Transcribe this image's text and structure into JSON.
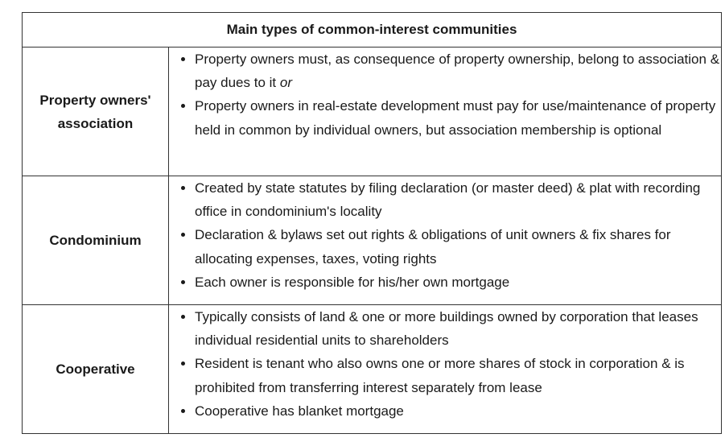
{
  "table": {
    "title": "Main types of common-interest communities",
    "rows": [
      {
        "label": "Property owners' association",
        "items": [
          {
            "text": "Property owners must, as consequence of property ownership, belong to association & pay dues to it",
            "suffix": "or"
          },
          {
            "text": "Property owners in real-estate development must pay for use/maintenance of property held in common by individual owners, but association membership is optional"
          }
        ]
      },
      {
        "label": "Condominium",
        "items": [
          {
            "text": "Created by state statutes by filing declaration (or master deed) & plat with recording office in condominium's locality"
          },
          {
            "text": "Declaration & bylaws set out rights & obligations of unit owners & fix shares for allocating expenses, taxes, voting rights"
          },
          {
            "text": "Each owner is responsible for his/her own mortgage"
          }
        ]
      },
      {
        "label": "Cooperative",
        "items": [
          {
            "text": "Typically consists of land & one or more buildings owned by corporation that leases individual residential units to shareholders"
          },
          {
            "text": "Resident is tenant who also owns one or more shares of stock in corporation & is prohibited from transferring interest separately from lease"
          },
          {
            "text": "Cooperative has blanket mortgage"
          }
        ]
      }
    ]
  }
}
